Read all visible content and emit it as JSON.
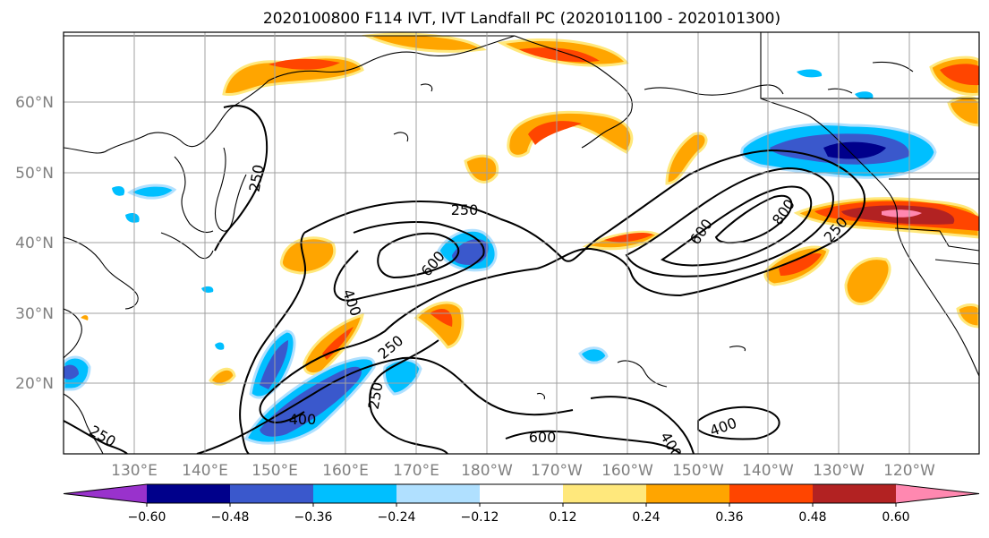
{
  "title": "2020100800 F114 IVT, IVT Landfall PC (2020101100 - 2020101300)",
  "lat_labels": [
    "60°N",
    "50°N",
    "40°N",
    "30°N",
    "20°N"
  ],
  "lon_labels": [
    "130°E",
    "140°E",
    "150°E",
    "160°E",
    "170°E",
    "180°W",
    "170°W",
    "160°W",
    "150°W",
    "140°W",
    "130°W",
    "120°W"
  ],
  "contour_labels": [
    "250",
    "250",
    "250",
    "250",
    "250",
    "400",
    "400",
    "400",
    "400",
    "600",
    "600",
    "600",
    "800",
    "250"
  ],
  "colorbar": {
    "colors": [
      "#9932cc",
      "#00008b",
      "#3a58cc",
      "#00bfff",
      "#b0e0ff",
      "#ffffff",
      "#ffe87c",
      "#ffa500",
      "#ff4500",
      "#b22222",
      "#ff88b0"
    ],
    "tick_labels": [
      "−0.60",
      "−0.48",
      "−0.36",
      "−0.24",
      "−0.12",
      "0.12",
      "0.24",
      "0.36",
      "0.48",
      "0.60"
    ]
  }
}
